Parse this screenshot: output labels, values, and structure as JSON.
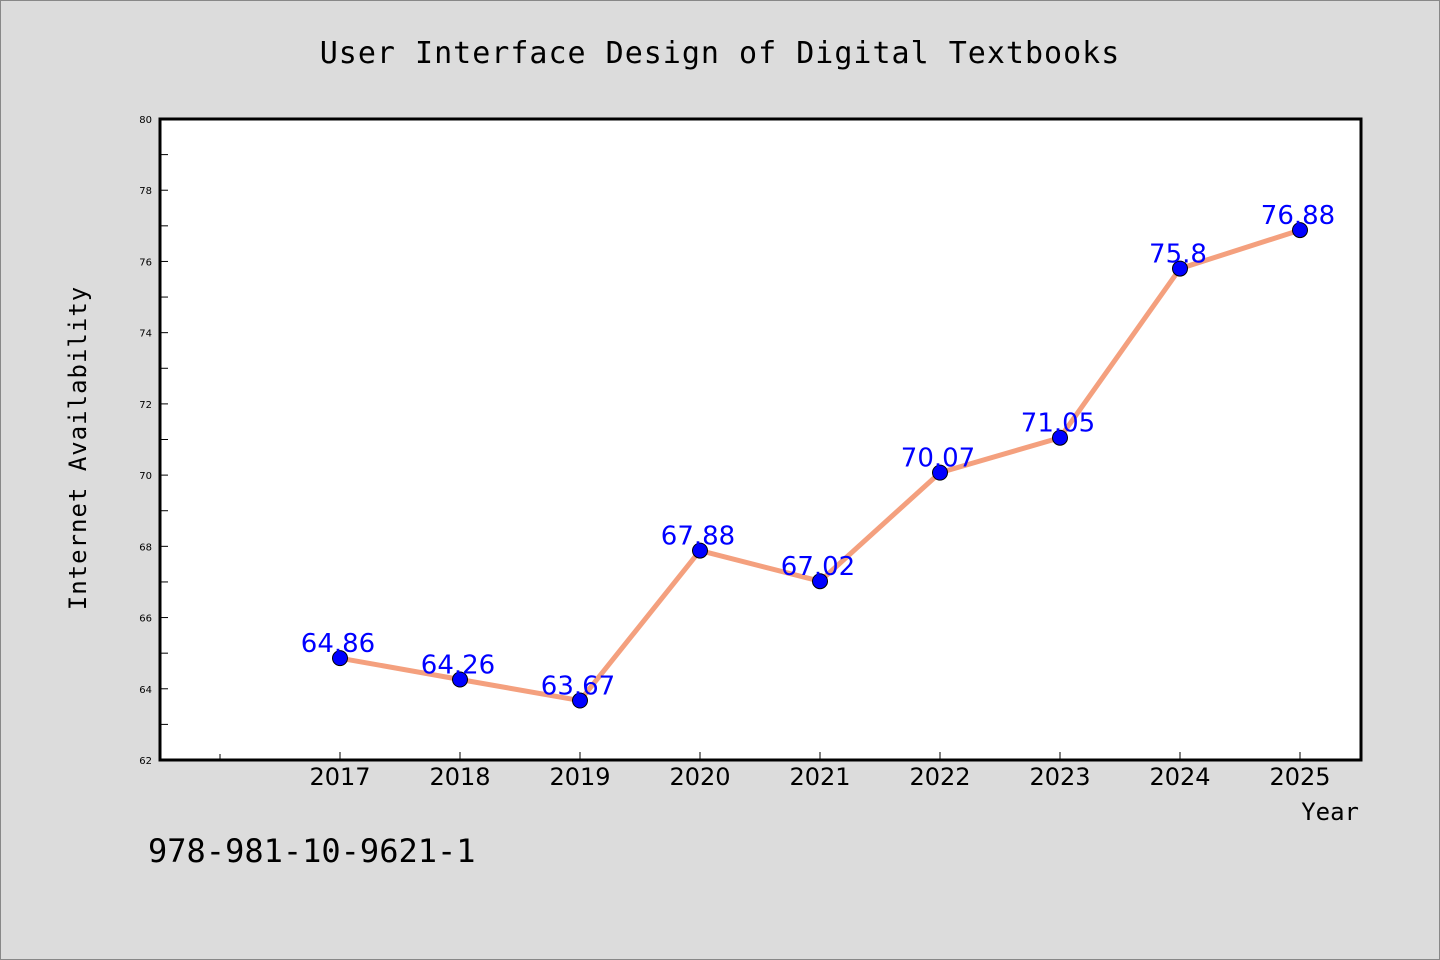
{
  "chart_data": {
    "type": "line",
    "title": "User Interface Design of Digital Textbooks",
    "xlabel": "Year",
    "ylabel": "Internet Availability",
    "categories": [
      "2017",
      "2018",
      "2019",
      "2020",
      "2021",
      "2022",
      "2023",
      "2024",
      "2025"
    ],
    "series": [
      {
        "values": [
          64.86,
          64.26,
          63.67,
          67.88,
          67.02,
          70.07,
          71.05,
          75.8,
          76.88
        ],
        "data_labels": [
          "64.86",
          "64.26",
          "63.67",
          "67.88",
          "67.02",
          "70.07",
          "71.05",
          "75.8",
          "76.88"
        ]
      }
    ],
    "ylim": [
      62,
      80
    ],
    "yticks": [
      "62",
      "64",
      "66",
      "68",
      "70",
      "72",
      "74",
      "76",
      "78",
      "80"
    ],
    "grid": false,
    "line_color": "#f4a07e",
    "marker_color": "#0000ff",
    "label_color": "#0000ff"
  },
  "footer": {
    "isbn": "978-981-10-9621-1"
  }
}
